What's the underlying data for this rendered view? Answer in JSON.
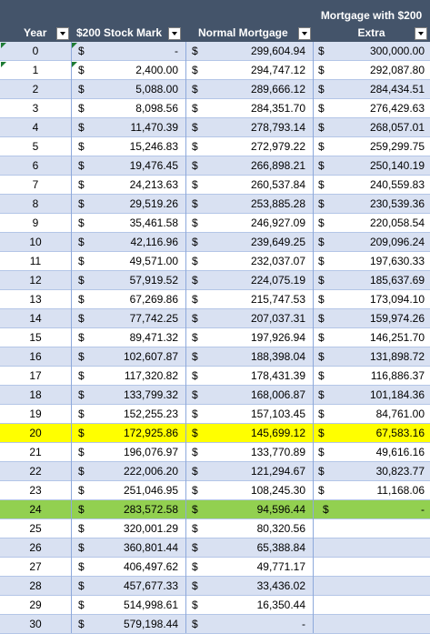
{
  "headers": {
    "year": "Year",
    "stock": "$200 Stock Mark",
    "normal": "Normal Mortgage",
    "extra_line1": "Mortgage with $200",
    "extra_line2": "Extra"
  },
  "currency": "$",
  "rows": [
    {
      "year": "0",
      "stock": "-",
      "normal": "299,604.94",
      "extra": "300,000.00"
    },
    {
      "year": "1",
      "stock": "2,400.00",
      "normal": "294,747.12",
      "extra": "292,087.80"
    },
    {
      "year": "2",
      "stock": "5,088.00",
      "normal": "289,666.12",
      "extra": "284,434.51"
    },
    {
      "year": "3",
      "stock": "8,098.56",
      "normal": "284,351.70",
      "extra": "276,429.63"
    },
    {
      "year": "4",
      "stock": "11,470.39",
      "normal": "278,793.14",
      "extra": "268,057.01"
    },
    {
      "year": "5",
      "stock": "15,246.83",
      "normal": "272,979.22",
      "extra": "259,299.75"
    },
    {
      "year": "6",
      "stock": "19,476.45",
      "normal": "266,898.21",
      "extra": "250,140.19"
    },
    {
      "year": "7",
      "stock": "24,213.63",
      "normal": "260,537.84",
      "extra": "240,559.83"
    },
    {
      "year": "8",
      "stock": "29,519.26",
      "normal": "253,885.28",
      "extra": "230,539.36"
    },
    {
      "year": "9",
      "stock": "35,461.58",
      "normal": "246,927.09",
      "extra": "220,058.54"
    },
    {
      "year": "10",
      "stock": "42,116.96",
      "normal": "239,649.25",
      "extra": "209,096.24"
    },
    {
      "year": "11",
      "stock": "49,571.00",
      "normal": "232,037.07",
      "extra": "197,630.33"
    },
    {
      "year": "12",
      "stock": "57,919.52",
      "normal": "224,075.19",
      "extra": "185,637.69"
    },
    {
      "year": "13",
      "stock": "67,269.86",
      "normal": "215,747.53",
      "extra": "173,094.10"
    },
    {
      "year": "14",
      "stock": "77,742.25",
      "normal": "207,037.31",
      "extra": "159,974.26"
    },
    {
      "year": "15",
      "stock": "89,471.32",
      "normal": "197,926.94",
      "extra": "146,251.70"
    },
    {
      "year": "16",
      "stock": "102,607.87",
      "normal": "188,398.04",
      "extra": "131,898.72"
    },
    {
      "year": "17",
      "stock": "117,320.82",
      "normal": "178,431.39",
      "extra": "116,886.37"
    },
    {
      "year": "18",
      "stock": "133,799.32",
      "normal": "168,006.87",
      "extra": "101,184.36"
    },
    {
      "year": "19",
      "stock": "152,255.23",
      "normal": "157,103.45",
      "extra": "84,761.00"
    },
    {
      "year": "20",
      "stock": "172,925.86",
      "normal": "145,699.12",
      "extra": "67,583.16",
      "highlight": "yellow"
    },
    {
      "year": "21",
      "stock": "196,076.97",
      "normal": "133,770.89",
      "extra": "49,616.16"
    },
    {
      "year": "22",
      "stock": "222,006.20",
      "normal": "121,294.67",
      "extra": "30,823.77"
    },
    {
      "year": "23",
      "stock": "251,046.95",
      "normal": "108,245.30",
      "extra": "11,168.06"
    },
    {
      "year": "24",
      "stock": "283,572.58",
      "normal": "94,596.44",
      "extra": "-",
      "highlight": "green"
    },
    {
      "year": "25",
      "stock": "320,001.29",
      "normal": "80,320.56",
      "extra": null
    },
    {
      "year": "26",
      "stock": "360,801.44",
      "normal": "65,388.84",
      "extra": null
    },
    {
      "year": "27",
      "stock": "406,497.62",
      "normal": "49,771.17",
      "extra": null
    },
    {
      "year": "28",
      "stock": "457,677.33",
      "normal": "33,436.02",
      "extra": null
    },
    {
      "year": "29",
      "stock": "514,998.61",
      "normal": "16,350.44",
      "extra": null
    },
    {
      "year": "30",
      "stock": "579,198.44",
      "normal": "-",
      "extra": null
    }
  ],
  "colors": {
    "header_bg": "#44546a",
    "band_blue": "#d9e1f2",
    "highlight_yellow": "#ffff00",
    "highlight_green": "#92d050",
    "error_triangle": "#1e7b34"
  }
}
